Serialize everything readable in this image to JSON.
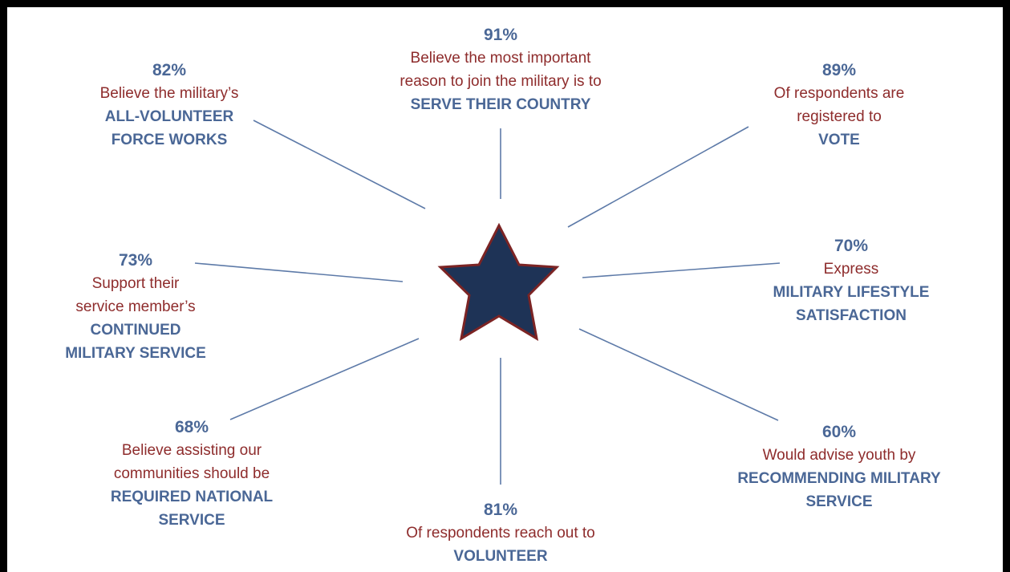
{
  "colors": {
    "percent": "#4a6796",
    "description": "#8e2c2c",
    "emphasis": "#4a6796",
    "ray": "#5d7aa8",
    "star_fill": "#1e3356",
    "star_stroke": "#7c2424"
  },
  "center_icon": "star-icon",
  "stats": {
    "top": {
      "percent": "91%",
      "lines": [
        "Believe the most important",
        "reason to join the military is to"
      ],
      "emphasis": [
        "SERVE THEIR COUNTRY"
      ]
    },
    "top_left": {
      "percent": "82%",
      "lines": [
        "Believe the military’s"
      ],
      "emphasis": [
        "ALL-VOLUNTEER",
        "FORCE WORKS"
      ]
    },
    "top_right": {
      "percent": "89%",
      "lines": [
        "Of respondents are",
        "registered to"
      ],
      "emphasis": [
        "VOTE"
      ]
    },
    "left": {
      "percent": "73%",
      "lines": [
        "Support their",
        "service member’s"
      ],
      "emphasis": [
        "CONTINUED",
        "MILITARY SERVICE"
      ]
    },
    "right": {
      "percent": "70%",
      "lines": [
        "Express"
      ],
      "emphasis": [
        "MILITARY LIFESTYLE",
        "SATISFACTION"
      ]
    },
    "bottom_left": {
      "percent": "68%",
      "lines": [
        "Believe assisting our",
        "communities should be"
      ],
      "emphasis": [
        "REQUIRED NATIONAL",
        "SERVICE"
      ]
    },
    "bottom": {
      "percent": "81%",
      "lines": [
        "Of respondents reach out to"
      ],
      "emphasis": [
        "VOLUNTEER"
      ]
    },
    "bottom_right": {
      "percent": "60%",
      "lines": [
        "Would advise youth by"
      ],
      "emphasis": [
        "RECOMMENDING MILITARY",
        "SERVICE"
      ]
    }
  }
}
